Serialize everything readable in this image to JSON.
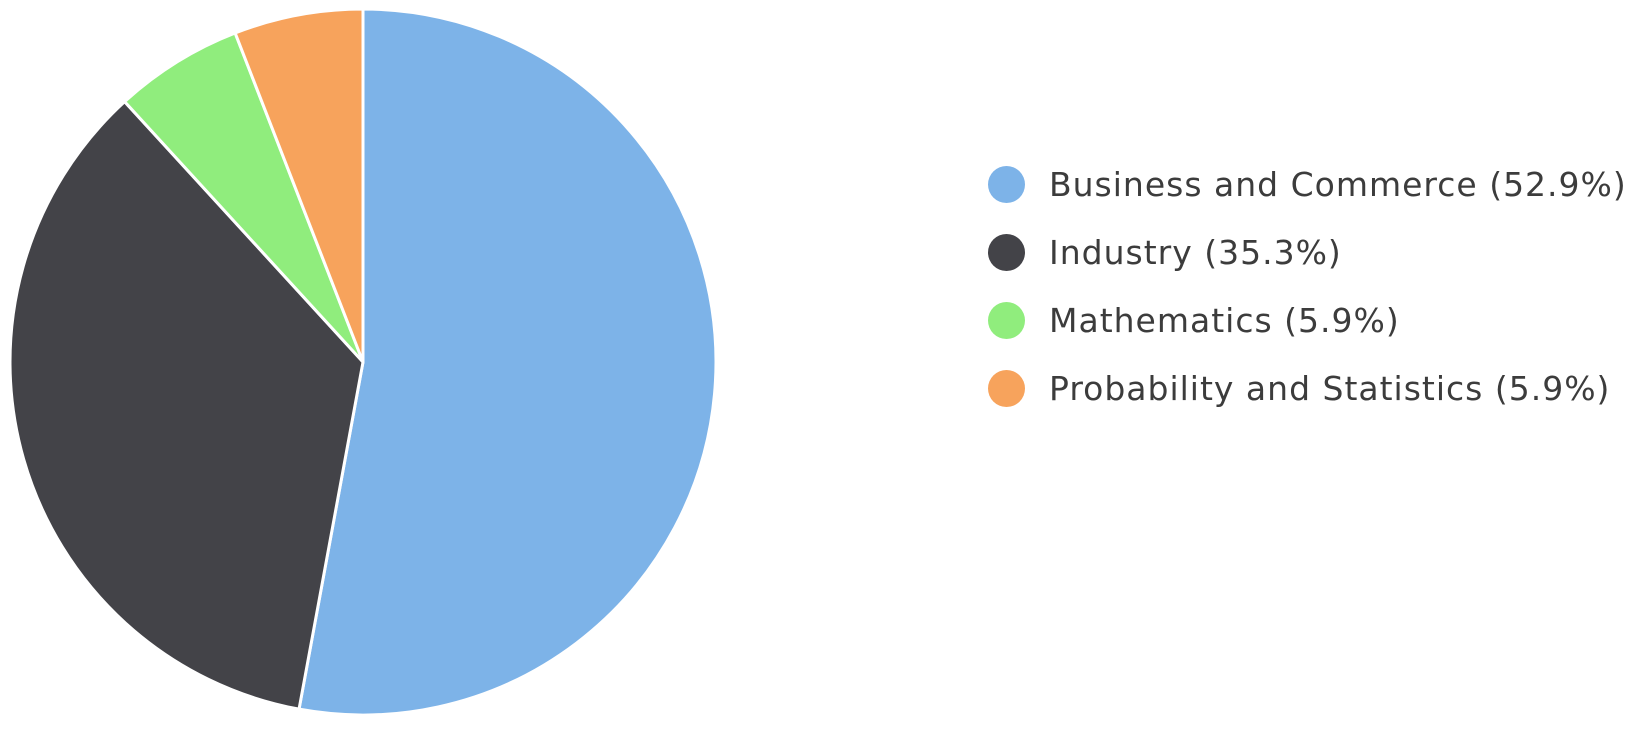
{
  "chart_data": {
    "type": "pie",
    "start_angle_deg": 0,
    "direction": "clockwise",
    "slices": [
      {
        "label": "Business and Commerce",
        "value": 52.9,
        "display": "Business and Commerce (52.9%)",
        "color": "#7db3e8"
      },
      {
        "label": "Industry",
        "value": 35.3,
        "display": "Industry (35.3%)",
        "color": "#434348"
      },
      {
        "label": "Mathematics",
        "value": 5.9,
        "display": "Mathematics (5.9%)",
        "color": "#90ed7d"
      },
      {
        "label": "Probability and Statistics",
        "value": 5.9,
        "display": "Probability and Statistics (5.9%)",
        "color": "#f7a35c"
      }
    ],
    "legend_position": "right",
    "slice_border_color": "#ffffff"
  }
}
